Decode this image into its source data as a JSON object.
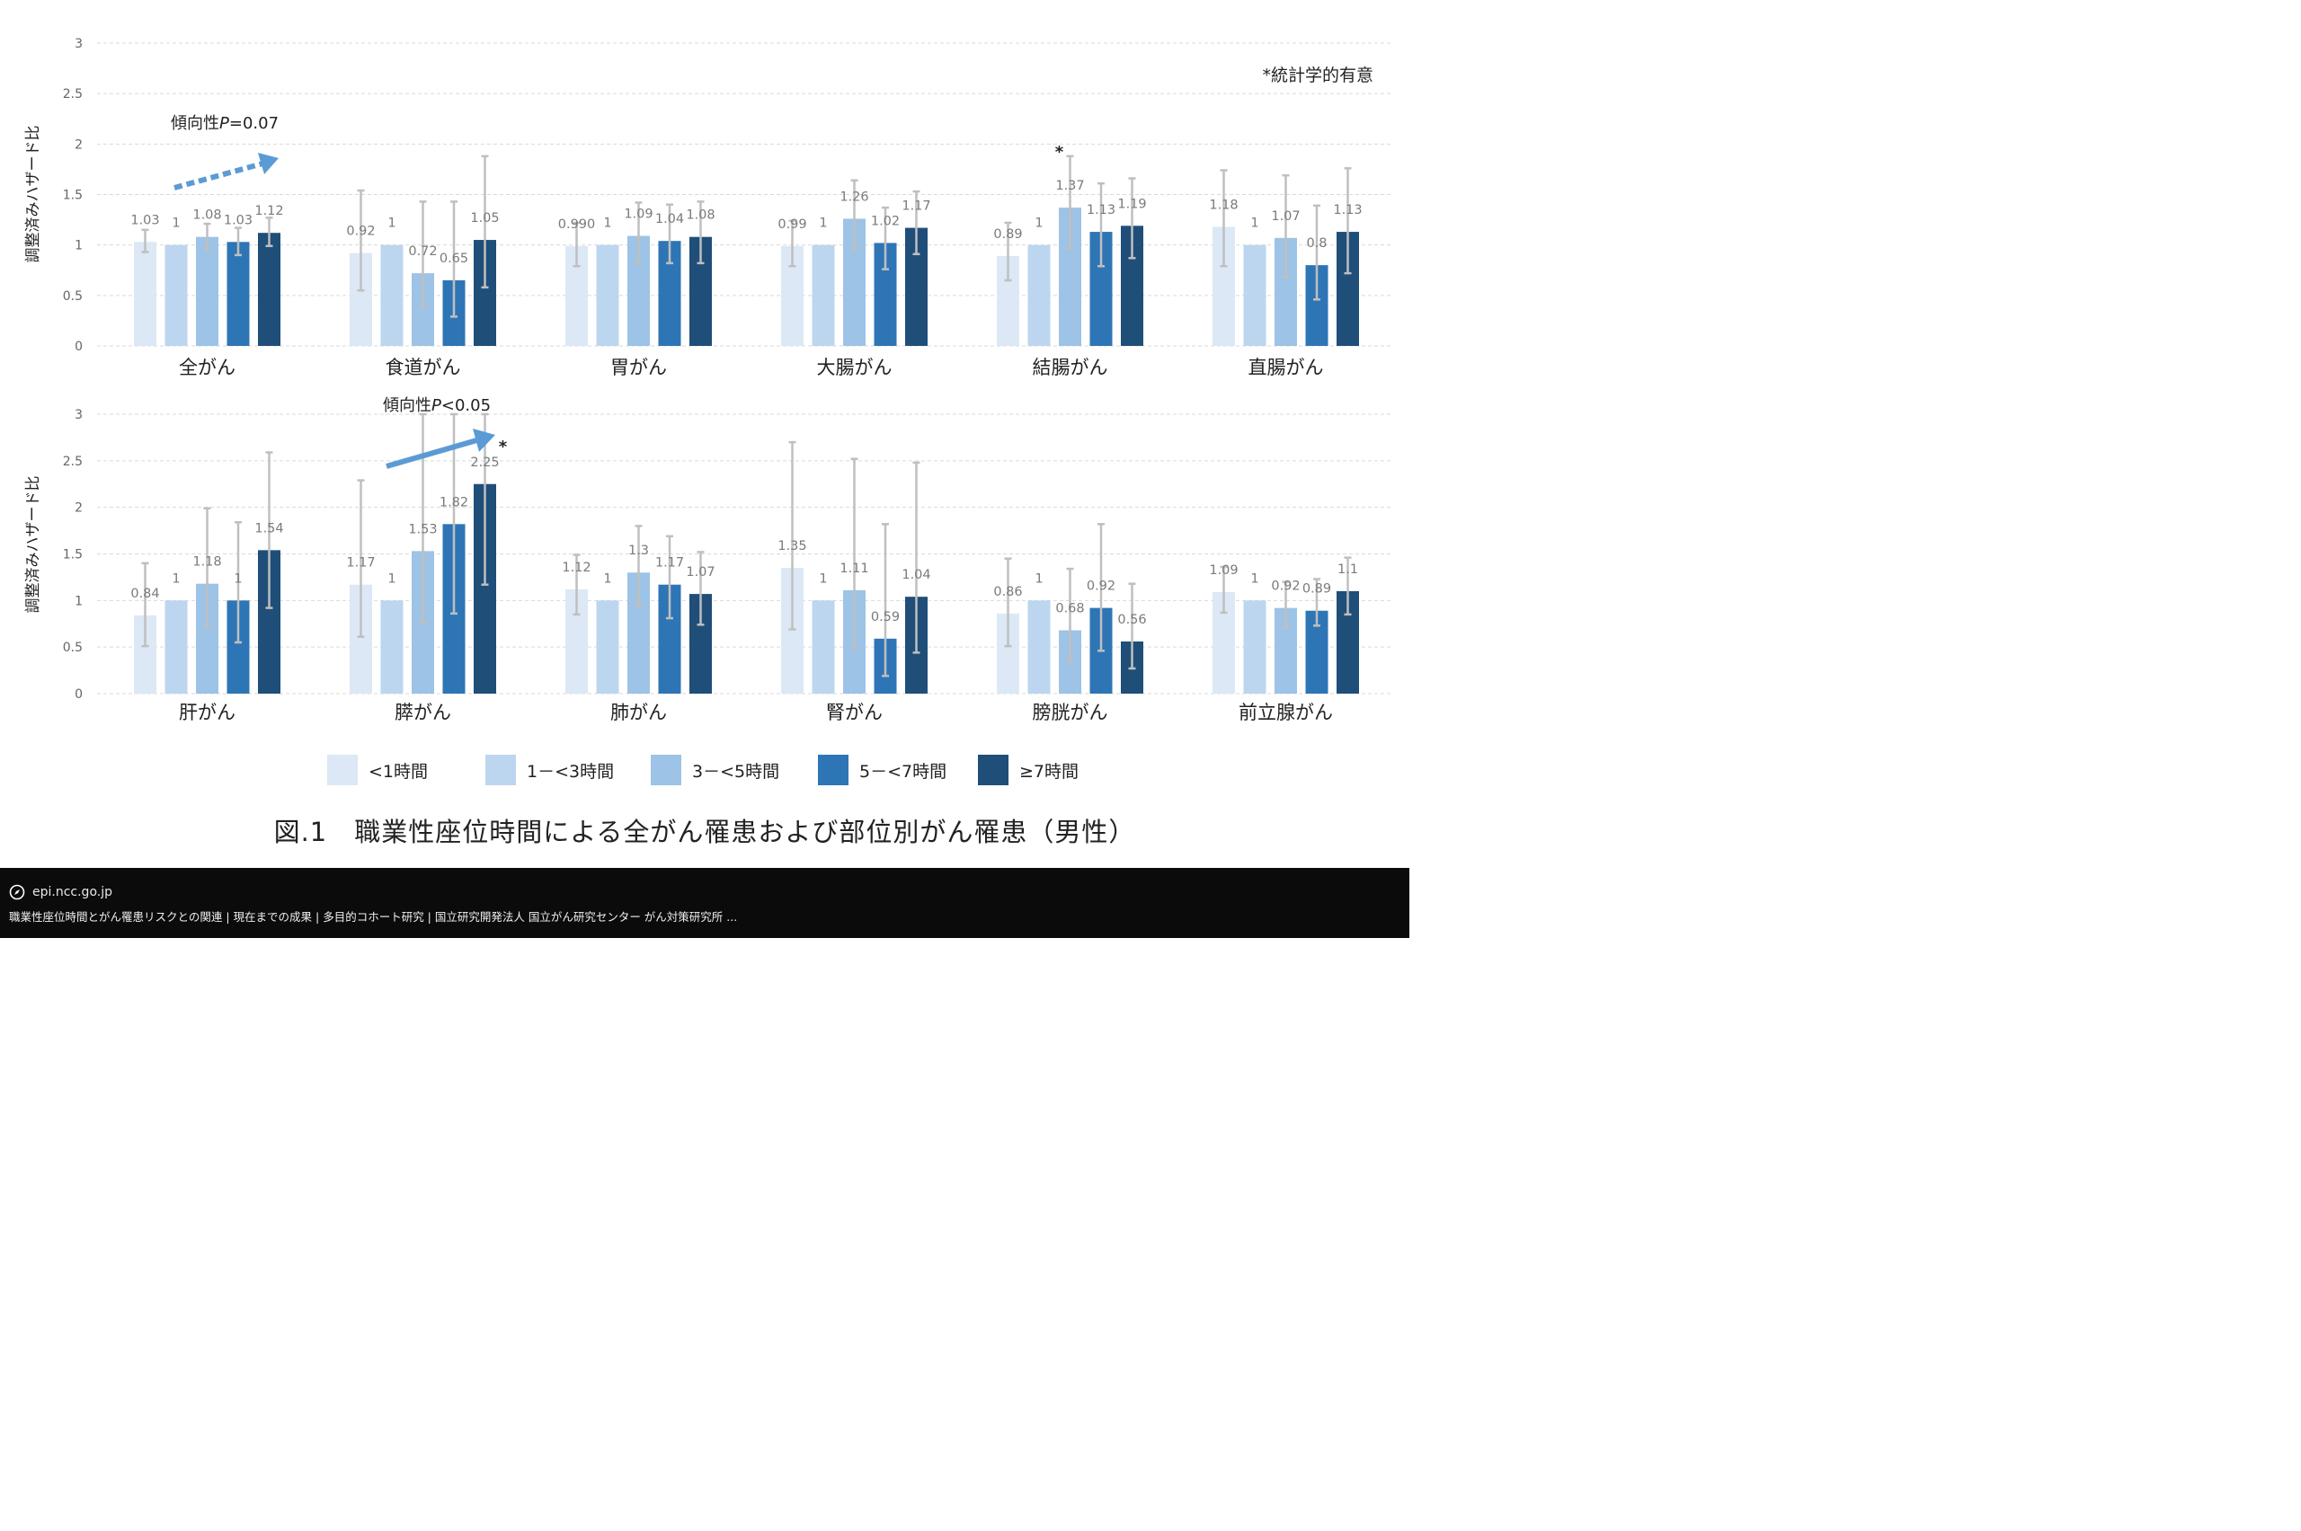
{
  "significance_note": "*統計学的有意",
  "panels": [
    {
      "trend_label": "傾向性P=0.07",
      "trend_prefix": "傾向性",
      "trend_italic": "P",
      "trend_suffix": "=0.07"
    },
    {
      "trend_label": "傾向性P<0.05",
      "trend_prefix": "傾向性",
      "trend_italic": "P",
      "trend_suffix": "<0.05"
    }
  ],
  "legend": [
    {
      "label": "<1時間",
      "color": "#dce8f5"
    },
    {
      "label": "1－<3時間",
      "color": "#bcd6ef"
    },
    {
      "label": "3－<5時間",
      "color": "#9dc3e6"
    },
    {
      "label": "5－<7時間",
      "color": "#2e75b6"
    },
    {
      "label": "≥7時間",
      "color": "#1f4e79"
    }
  ],
  "colors": {
    "error_bar": "#bfbfbf",
    "grid": "#d9d9d9",
    "trend_arrow": "#5b9bd5"
  },
  "caption": "図.1　職業性座位時間による全がん罹患および部位別がん罹患（男性）",
  "source": {
    "domain": "epi.ncc.go.jp",
    "title": "職業性座位時間とがん罹患リスクとの関連 | 現在までの成果 | 多目的コホート研究 | 国立研究開発法人 国立がん研究センター がん対策研究所 ...",
    "icon": "compass-icon"
  },
  "chart_data": [
    {
      "type": "bar",
      "ylabel": "調整済みハザード比",
      "ylim": [
        0,
        3
      ],
      "yticks": [
        "0",
        "0.5",
        "1",
        "1.5",
        "2",
        "2.5",
        "3"
      ],
      "grid": true,
      "series_names": [
        "<1時間",
        "1－<3時間",
        "3－<5時間",
        "5－<7時間",
        "≥7時間"
      ],
      "categories": [
        "全がん",
        "食道がん",
        "胃がん",
        "大腸がん",
        "結腸がん",
        "直腸がん"
      ],
      "values": [
        [
          1.03,
          1,
          1.08,
          1.03,
          1.12
        ],
        [
          0.92,
          1,
          0.72,
          0.65,
          1.05
        ],
        [
          0.99,
          1,
          1.09,
          1.04,
          1.08
        ],
        [
          0.99,
          1,
          1.26,
          1.02,
          1.17
        ],
        [
          0.89,
          1,
          1.37,
          1.13,
          1.19
        ],
        [
          1.18,
          1,
          1.07,
          0.8,
          1.13
        ]
      ],
      "value_labels": [
        [
          "1.03",
          "1",
          "1.08",
          "1.03",
          "1.12"
        ],
        [
          "0.92",
          "1",
          "0.72",
          "0.65",
          "1.05"
        ],
        [
          "0.990",
          "1",
          "1.09",
          "1.04",
          "1.08"
        ],
        [
          "0.99",
          "1",
          "1.26",
          "1.02",
          "1.17"
        ],
        [
          "0.89",
          "1",
          "1.37",
          "1.13",
          "1.19"
        ],
        [
          "1.18",
          "1",
          "1.07",
          "0.8",
          "1.13"
        ]
      ],
      "ci": [
        [
          [
            0.93,
            1.15
          ],
          null,
          [
            0.95,
            1.21
          ],
          [
            0.9,
            1.17
          ],
          [
            0.99,
            1.27
          ]
        ],
        [
          [
            0.55,
            1.54
          ],
          null,
          [
            0.38,
            1.43
          ],
          [
            0.29,
            1.43
          ],
          [
            0.58,
            1.88
          ]
        ],
        [
          [
            0.79,
            1.22
          ],
          null,
          [
            0.82,
            1.42
          ],
          [
            0.82,
            1.4
          ],
          [
            0.82,
            1.43
          ]
        ],
        [
          [
            0.79,
            1.24
          ],
          null,
          [
            0.95,
            1.64
          ],
          [
            0.76,
            1.37
          ],
          [
            0.91,
            1.53
          ]
        ],
        [
          [
            0.65,
            1.22
          ],
          null,
          [
            0.96,
            1.88
          ],
          [
            0.79,
            1.61
          ],
          [
            0.87,
            1.66
          ]
        ],
        [
          [
            0.79,
            1.74
          ],
          null,
          [
            0.68,
            1.69
          ],
          [
            0.46,
            1.39
          ],
          [
            0.72,
            1.76
          ]
        ]
      ],
      "significant": [
        [
          4,
          2
        ]
      ],
      "trend": {
        "label": "傾向性P=0.07",
        "category": "全がん",
        "style": "dotted-arrow"
      }
    },
    {
      "type": "bar",
      "ylabel": "調整済みハザード比",
      "ylim": [
        0,
        3
      ],
      "yticks": [
        "0",
        "0.5",
        "1",
        "1.5",
        "2",
        "2.5",
        "3"
      ],
      "grid": true,
      "series_names": [
        "<1時間",
        "1－<3時間",
        "3－<5時間",
        "5－<7時間",
        "≥7時間"
      ],
      "categories": [
        "肝がん",
        "膵がん",
        "肺がん",
        "腎がん",
        "膀胱がん",
        "前立腺がん"
      ],
      "values": [
        [
          0.84,
          1,
          1.18,
          1,
          1.54
        ],
        [
          1.17,
          1,
          1.53,
          1.82,
          2.25
        ],
        [
          1.12,
          1,
          1.3,
          1.17,
          1.07
        ],
        [
          1.35,
          1,
          1.11,
          0.59,
          1.04
        ],
        [
          0.86,
          1,
          0.68,
          0.92,
          0.56
        ],
        [
          1.09,
          1,
          0.92,
          0.89,
          1.1
        ]
      ],
      "value_labels": [
        [
          "0.84",
          "1",
          "1.18",
          "1",
          "1.54"
        ],
        [
          "1.17",
          "1",
          "1.53",
          "1.82",
          "2.25"
        ],
        [
          "1.12",
          "1",
          "1.3",
          "1.17",
          "1.07"
        ],
        [
          "1.35",
          "1",
          "1.11",
          "0.59",
          "1.04"
        ],
        [
          "0.86",
          "1",
          "0.68",
          "0.92",
          "0.56"
        ],
        [
          "1.09",
          "1",
          "0.92",
          "0.89",
          "1.1"
        ]
      ],
      "ci": [
        [
          [
            0.51,
            1.4
          ],
          null,
          [
            0.71,
            1.99
          ],
          [
            0.55,
            1.84
          ],
          [
            0.92,
            2.59
          ]
        ],
        [
          [
            0.61,
            2.29
          ],
          null,
          [
            0.76,
            3.0
          ],
          [
            0.86,
            3.0
          ],
          [
            1.17,
            3.0
          ]
        ],
        [
          [
            0.85,
            1.49
          ],
          null,
          [
            0.94,
            1.8
          ],
          [
            0.81,
            1.69
          ],
          [
            0.74,
            1.52
          ]
        ],
        [
          [
            0.69,
            2.7
          ],
          null,
          [
            0.49,
            2.52
          ],
          [
            0.19,
            1.82
          ],
          [
            0.44,
            2.48
          ]
        ],
        [
          [
            0.51,
            1.45
          ],
          null,
          [
            0.34,
            1.34
          ],
          [
            0.46,
            1.82
          ],
          [
            0.27,
            1.18
          ]
        ],
        [
          [
            0.87,
            1.36
          ],
          null,
          [
            0.71,
            1.2
          ],
          [
            0.73,
            1.23
          ],
          [
            0.85,
            1.46
          ]
        ]
      ],
      "significant": [
        [
          1,
          4
        ]
      ],
      "trend": {
        "label": "傾向性P<0.05",
        "category": "膵がん",
        "style": "solid-arrow"
      }
    }
  ]
}
